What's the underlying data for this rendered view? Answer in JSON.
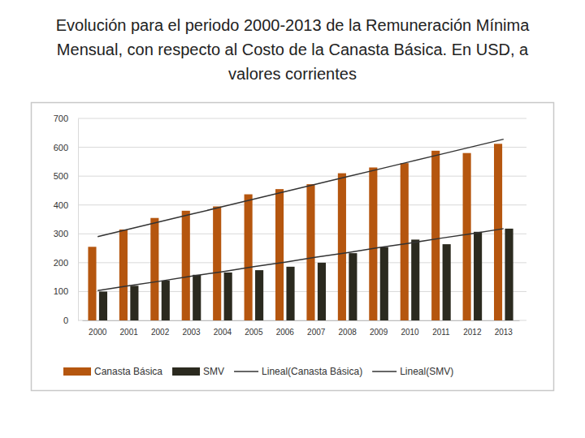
{
  "chart_data": {
    "type": "bar",
    "title": "Evolución para el periodo 2000-2013 de la Remuneración Mínima Mensual, con respecto al Costo de la Canasta Básica. En USD, a valores corrientes",
    "categories": [
      "2000",
      "2001",
      "2002",
      "2003",
      "2004",
      "2005",
      "2006",
      "2007",
      "2008",
      "2009",
      "2010",
      "2011",
      "2012",
      "2013"
    ],
    "series": [
      {
        "name": "Canasta Básica",
        "type": "bar",
        "color": "#b5560f",
        "values": [
          255,
          315,
          355,
          380,
          395,
          437,
          455,
          472,
          510,
          530,
          545,
          588,
          580,
          612
        ]
      },
      {
        "name": "SMV",
        "type": "bar",
        "color": "#2b2a1f",
        "values": [
          100,
          120,
          138,
          158,
          166,
          174,
          186,
          200,
          233,
          254,
          280,
          264,
          307,
          318
        ]
      },
      {
        "name": "Lineal(Canasta Básica)",
        "type": "line",
        "color": "#333333",
        "line_style": "solid",
        "values": [
          290,
          316,
          342,
          368,
          394,
          420,
          446,
          472,
          498,
          524,
          550,
          576,
          602,
          628
        ]
      },
      {
        "name": "Lineal(SMV)",
        "type": "line",
        "color": "#333333",
        "line_style": "solid",
        "values": [
          103,
          120,
          136,
          153,
          169,
          186,
          202,
          219,
          235,
          252,
          268,
          285,
          301,
          318
        ]
      }
    ],
    "ylim": [
      0,
      700
    ],
    "yticks": [
      0,
      100,
      200,
      300,
      400,
      500,
      600,
      700
    ],
    "grid": true,
    "legend": "bottom"
  }
}
